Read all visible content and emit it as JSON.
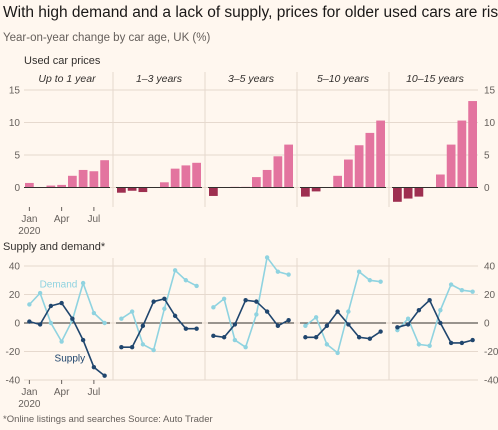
{
  "title": "With high demand and a lack of supply, prices for older used cars are rising",
  "subtitle": "Year-on-year change by car age, UK (%)",
  "source": "*Online listings and searches  Source: Auto Trader",
  "chart_data": [
    {
      "type": "bar",
      "title": "Used car prices",
      "x": [
        "Jan 2020",
        "Feb 2020",
        "Mar 2020",
        "Apr 2020",
        "May 2020",
        "Jun 2020",
        "Jul 2020",
        "Aug 2020"
      ],
      "xtick_labels": [
        "Jan",
        "Apr",
        "Jul"
      ],
      "xtick_year": "2020",
      "ylim": [
        -3,
        15
      ],
      "yticks": [
        0,
        5,
        10,
        15
      ],
      "colors": {
        "positive": "#e3749f",
        "negative": "#9e2f50"
      },
      "panels": [
        {
          "name": "Up to 1 year",
          "values": [
            0.7,
            0.0,
            0.3,
            0.4,
            1.8,
            2.7,
            2.5,
            4.2
          ]
        },
        {
          "name": "1–3 years",
          "values": [
            -0.8,
            -0.5,
            -0.7,
            0.0,
            0.8,
            2.9,
            3.4,
            3.8
          ]
        },
        {
          "name": "3–5 years",
          "values": [
            -1.3,
            0.0,
            0.1,
            0.1,
            1.6,
            2.7,
            4.8,
            6.6
          ]
        },
        {
          "name": "5–10 years",
          "values": [
            -1.4,
            -0.6,
            0.0,
            1.8,
            4.3,
            6.5,
            8.4,
            10.3
          ]
        },
        {
          "name": "10–15 years",
          "values": [
            -2.2,
            -1.7,
            -1.4,
            0.0,
            2.0,
            6.6,
            10.3,
            13.3
          ]
        }
      ]
    },
    {
      "type": "line",
      "title": "Supply and demand*",
      "x": [
        "Jan 2020",
        "Feb 2020",
        "Mar 2020",
        "Apr 2020",
        "May 2020",
        "Jun 2020",
        "Jul 2020",
        "Aug 2020"
      ],
      "ylim": [
        -40,
        40
      ],
      "yticks": [
        -40,
        -20,
        0,
        20,
        40
      ],
      "series_names": {
        "demand": "Demand",
        "supply": "Supply"
      },
      "colors": {
        "demand": "#8fd3e0",
        "supply": "#20466e"
      },
      "panels": [
        {
          "name": "Up to 1 year",
          "demand": [
            13,
            21,
            0,
            -13,
            2,
            28,
            7,
            0
          ],
          "supply": [
            1,
            -1,
            12,
            14,
            3,
            -12,
            -31,
            -37
          ]
        },
        {
          "name": "1–3 years",
          "demand": [
            3,
            8,
            -15,
            -19,
            10,
            37,
            30,
            26
          ],
          "supply": [
            -17,
            -17,
            -2,
            15,
            17,
            5,
            -4,
            -4
          ]
        },
        {
          "name": "3–5 years",
          "demand": [
            11,
            17,
            -12,
            -17,
            6,
            46,
            36,
            34
          ],
          "supply": [
            -9,
            -10,
            -1,
            16,
            15,
            8,
            -2,
            2
          ]
        },
        {
          "name": "5–10 years",
          "demand": [
            -2,
            4,
            -15,
            -21,
            8,
            36,
            30,
            29
          ],
          "supply": [
            -10,
            -10,
            -2,
            8,
            -1,
            -10,
            -11,
            -6
          ]
        },
        {
          "name": "10–15 years",
          "demand": [
            -5,
            3,
            -15,
            -16,
            9,
            27,
            23,
            22
          ],
          "supply": [
            -3,
            -1,
            9,
            16,
            0,
            -14,
            -14,
            -12
          ]
        }
      ]
    }
  ]
}
